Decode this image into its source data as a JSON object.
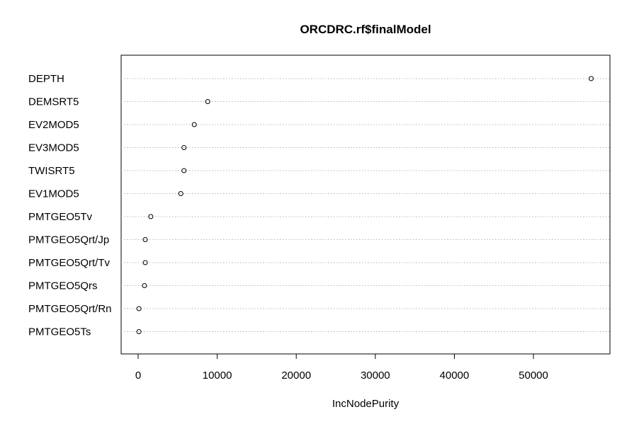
{
  "chart_data": {
    "type": "scatter",
    "title": "ORCDRC.rf$finalModel",
    "xlabel": "IncNodePurity",
    "ylabel": "",
    "xlim": [
      -2000,
      59500
    ],
    "xticks": [
      0,
      10000,
      20000,
      30000,
      40000,
      50000
    ],
    "xtick_labels": [
      "0",
      "10000",
      "20000",
      "30000",
      "40000",
      "50000"
    ],
    "grid": "dotted horizontal lines per variable",
    "categories": [
      "DEPTH",
      "DEMSRT5",
      "EV2MOD5",
      "EV3MOD5",
      "TWISRT5",
      "EV1MOD5",
      "PMTGEO5Tv",
      "PMTGEO5Qrt/Jp",
      "PMTGEO5Qrt/Tv",
      "PMTGEO5Qrs",
      "PMTGEO5Qrt/Rn",
      "PMTGEO5Ts"
    ],
    "values": [
      57300,
      8800,
      7100,
      5800,
      5800,
      5400,
      1600,
      900,
      900,
      800,
      100,
      100
    ]
  }
}
